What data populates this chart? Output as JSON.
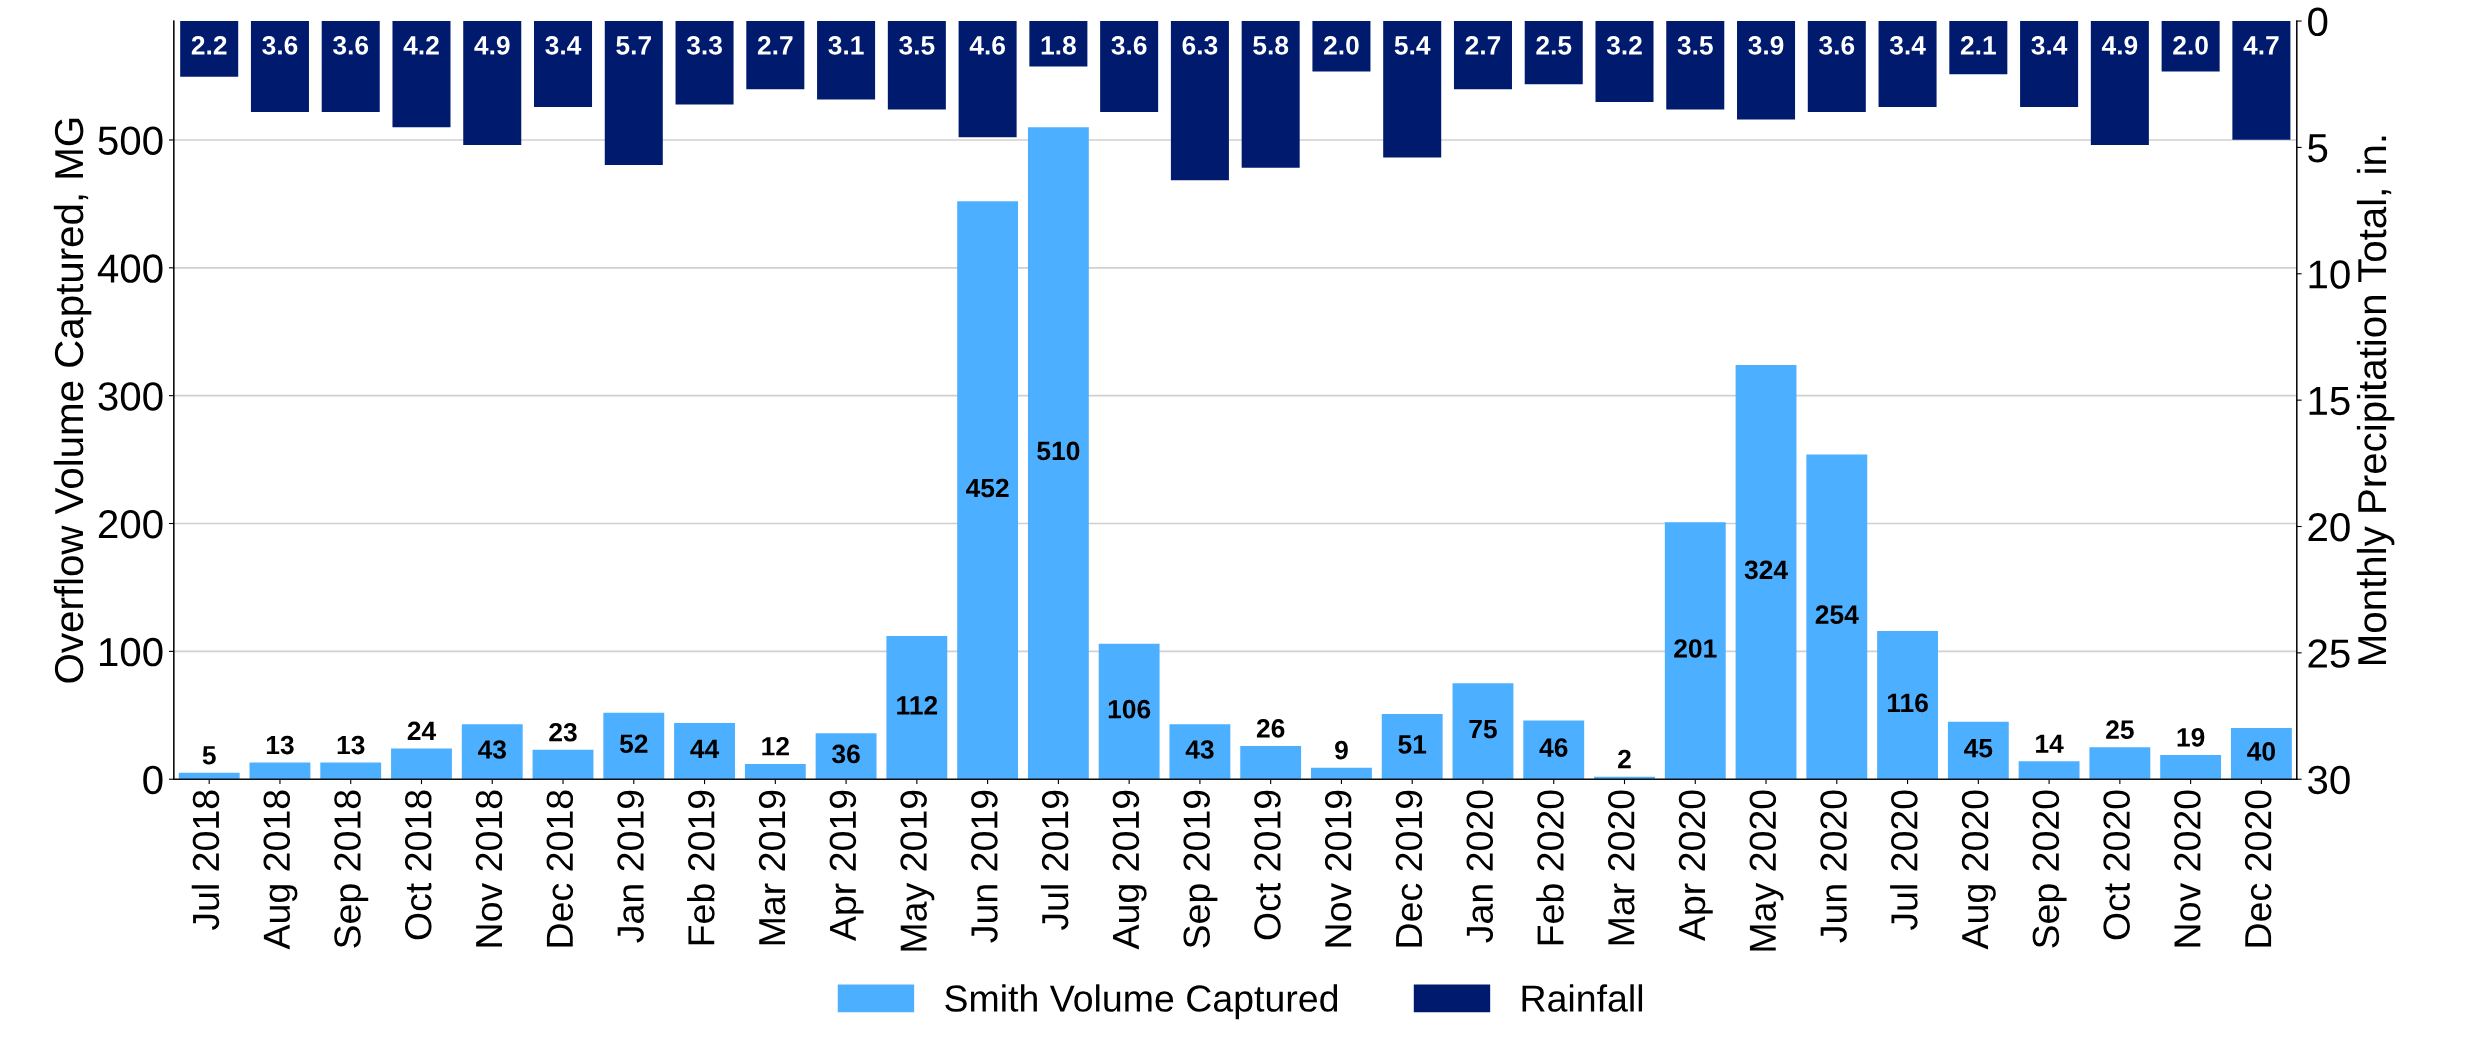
{
  "chart_data": {
    "type": "bar",
    "ylabel": "Overflow Volume Captured, MG",
    "y2label": "Monthly Precipitation Total, in.",
    "categories": [
      "Jul 2018",
      "Aug 2018",
      "Sep 2018",
      "Oct 2018",
      "Nov 2018",
      "Dec 2018",
      "Jan 2019",
      "Feb 2019",
      "Mar 2019",
      "Apr 2019",
      "May 2019",
      "Jun 2019",
      "Jul 2019",
      "Aug 2019",
      "Sep 2019",
      "Oct 2019",
      "Nov 2019",
      "Dec 2019",
      "Jan 2020",
      "Feb 2020",
      "Mar 2020",
      "Apr 2020",
      "May 2020",
      "Jun 2020",
      "Jul 2020",
      "Aug 2020",
      "Sep 2020",
      "Oct 2020",
      "Nov 2020",
      "Dec 2020"
    ],
    "series": [
      {
        "name": "Smith Volume Captured",
        "color": "#4dafff",
        "values": [
          5,
          13,
          13,
          24,
          43,
          23,
          52,
          44,
          12,
          36,
          112,
          452,
          510,
          106,
          43,
          26,
          9,
          51,
          75,
          46,
          2,
          201,
          324,
          254,
          116,
          45,
          14,
          25,
          19,
          40
        ]
      },
      {
        "name": "Rainfall",
        "color": "#001a6e",
        "axis": "y2",
        "values": [
          2.2,
          3.6,
          3.6,
          4.2,
          4.9,
          3.4,
          5.7,
          3.3,
          2.7,
          3.1,
          3.5,
          4.6,
          1.8,
          3.6,
          6.3,
          5.8,
          2.0,
          5.4,
          2.7,
          2.5,
          3.2,
          3.5,
          3.9,
          3.6,
          3.4,
          2.1,
          3.4,
          4.9,
          2.0,
          4.7
        ],
        "value_labels": [
          "2.2",
          "3.6",
          "3.6",
          "4.2",
          "4.9",
          "3.4",
          "5.7",
          "3.3",
          "2.7",
          "3.1",
          "3.5",
          "4.6",
          "1.8",
          "3.6",
          "6.3",
          "5.8",
          "2.0",
          "5.4",
          "2.7",
          "2.5",
          "3.2",
          "3.5",
          "3.9",
          "3.6",
          "3.4",
          "2.1",
          "3.4",
          "4.9",
          "2.0",
          "4.7"
        ]
      }
    ],
    "data_labels": true,
    "ylim": [
      0,
      593
    ],
    "yticks": [
      0,
      100,
      200,
      300,
      400,
      500
    ],
    "y2lim": [
      30,
      0
    ],
    "y2ticks": [
      0,
      5,
      10,
      15,
      20,
      25,
      30
    ],
    "grid": "y",
    "legend": "bottom"
  }
}
